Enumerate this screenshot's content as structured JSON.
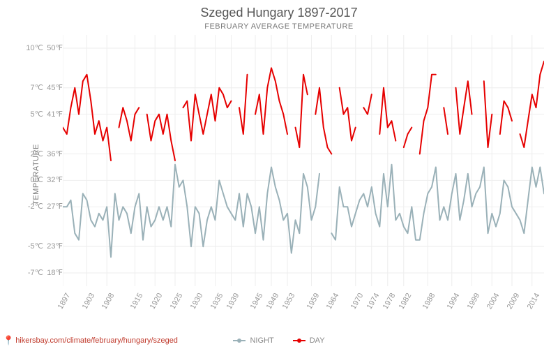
{
  "title": "Szeged Hungary 1897-2017",
  "subtitle": "FEBRUARY AVERAGE TEMPERATURE",
  "yaxis_label": "TEMPERATURE",
  "attribution": "hikersbay.com/climate/february/hungary/szeged",
  "chart": {
    "type": "line",
    "background_color": "#ffffff",
    "grid_color": "#eeeeee",
    "axis_text_color": "#999999",
    "title_color": "#555555",
    "title_fontsize": 18,
    "subtitle_fontsize": 11,
    "tick_fontsize": 11,
    "xlim": [
      1897,
      2017
    ],
    "ylim": [
      -8,
      11
    ],
    "yticks_c": [
      -7,
      -5,
      -2,
      0,
      2,
      5,
      7,
      10
    ],
    "yticks_f": [
      18,
      23,
      27,
      32,
      36,
      41,
      45,
      50
    ],
    "xticks": [
      1897,
      1903,
      1908,
      1915,
      1920,
      1925,
      1930,
      1935,
      1939,
      1945,
      1949,
      1953,
      1959,
      1964,
      1970,
      1974,
      1978,
      1982,
      1988,
      1994,
      1999,
      2004,
      2009,
      2014
    ],
    "series": [
      {
        "name": "NIGHT",
        "color": "#9ab1b8",
        "line_width": 2,
        "marker": "circle",
        "segments": [
          {
            "x": [
              1897,
              1898,
              1899,
              1900,
              1901,
              1902,
              1903,
              1904,
              1905,
              1906,
              1907,
              1908,
              1909,
              1910,
              1911,
              1912,
              1913,
              1914,
              1915,
              1916,
              1917,
              1918,
              1919,
              1920,
              1921,
              1922,
              1923,
              1924,
              1925,
              1926,
              1927,
              1928,
              1929,
              1930,
              1931,
              1932,
              1933,
              1934,
              1935,
              1936,
              1937,
              1938,
              1939,
              1940,
              1941,
              1942,
              1943,
              1944,
              1945,
              1946,
              1947,
              1948,
              1949,
              1950,
              1951,
              1952,
              1953,
              1954,
              1955,
              1956,
              1957,
              1958,
              1959,
              1960,
              1961
            ],
            "y": [
              -2.0,
              -2.0,
              -1.5,
              -4.0,
              -4.5,
              -1.0,
              -1.5,
              -3.0,
              -3.5,
              -2.5,
              -3.0,
              -2.0,
              -5.8,
              -1.0,
              -3.0,
              -2.0,
              -2.5,
              -4.0,
              -2.0,
              -1.0,
              -4.5,
              -2.0,
              -3.5,
              -3.0,
              -2.0,
              -3.0,
              -2.0,
              -3.5,
              1.2,
              -0.5,
              0.0,
              -2.0,
              -5.0,
              -2.0,
              -2.5,
              -5.0,
              -3.0,
              -2.0,
              -3.0,
              0.0,
              -1.0,
              -2.0,
              -2.5,
              -3.0,
              -1.0,
              -3.5,
              -1.0,
              -2.0,
              -4.0,
              -2.0,
              -4.5,
              -1.0,
              1.0,
              -0.5,
              -1.5,
              -3.0,
              -2.5,
              -5.5,
              -3.0,
              -4.0,
              0.5,
              -0.5,
              -3.0,
              -2.0,
              0.5
            ]
          },
          {
            "x": [
              1964,
              1965,
              1966,
              1967,
              1968,
              1969,
              1970,
              1971,
              1972,
              1973,
              1974,
              1975,
              1976,
              1977,
              1978,
              1979,
              1980,
              1981,
              1982,
              1983,
              1984,
              1985,
              1986,
              1987,
              1988,
              1989,
              1990,
              1991,
              1992,
              1993,
              1994,
              1995,
              1996,
              1997,
              1998,
              1999,
              2000,
              2001,
              2002,
              2003,
              2004,
              2005,
              2006,
              2007,
              2008,
              2009,
              2010,
              2011,
              2012,
              2013,
              2014,
              2015,
              2016,
              2017
            ],
            "y": [
              -4.0,
              -4.5,
              -0.5,
              -2.0,
              -2.0,
              -3.5,
              -2.5,
              -1.5,
              -1.0,
              -2.0,
              -0.5,
              -2.5,
              -3.5,
              0.5,
              -2.0,
              1.2,
              -3.0,
              -2.5,
              -3.5,
              -4.0,
              -2.0,
              -4.5,
              -4.5,
              -2.5,
              -1.0,
              -0.5,
              1.0,
              -3.0,
              -2.0,
              -3.0,
              -1.0,
              0.5,
              -3.0,
              -1.5,
              0.5,
              -2.0,
              -1.0,
              -0.5,
              1.0,
              -4.0,
              -2.5,
              -3.5,
              -2.5,
              0.0,
              -0.5,
              -2.0,
              -2.5,
              -3.0,
              -4.0,
              -1.5,
              1.0,
              -0.5,
              1.0,
              -1.0
            ]
          }
        ]
      },
      {
        "name": "DAY",
        "color": "#e60000",
        "line_width": 2,
        "marker": "circle",
        "segments": [
          {
            "x": [
              1897,
              1898,
              1899,
              1900,
              1901,
              1902,
              1903,
              1904,
              1905,
              1906,
              1907,
              1908,
              1909
            ],
            "y": [
              4.0,
              3.5,
              5.5,
              7.0,
              5.0,
              7.5,
              8.0,
              6.0,
              3.5,
              4.5,
              3.0,
              4.0,
              1.5
            ]
          },
          {
            "x": [
              1911,
              1912,
              1913,
              1914,
              1915,
              1916
            ],
            "y": [
              4.0,
              5.5,
              4.5,
              3.0,
              5.0,
              5.5
            ]
          },
          {
            "x": [
              1918,
              1919,
              1920,
              1921,
              1922,
              1923,
              1924,
              1925
            ],
            "y": [
              5.0,
              3.0,
              4.5,
              5.0,
              3.5,
              5.0,
              3.0,
              1.5
            ]
          },
          {
            "x": [
              1927,
              1928,
              1929,
              1930,
              1931,
              1932,
              1933,
              1934,
              1935,
              1936,
              1937,
              1938,
              1939
            ],
            "y": [
              5.5,
              6.0,
              3.0,
              6.5,
              5.0,
              3.5,
              5.0,
              6.5,
              4.5,
              7.0,
              6.5,
              5.5,
              6.0
            ]
          },
          {
            "x": [
              1941,
              1942,
              1943
            ],
            "y": [
              5.5,
              3.5,
              8.0
            ]
          },
          {
            "x": [
              1945,
              1946,
              1947,
              1948,
              1949,
              1950,
              1951,
              1952,
              1953
            ],
            "y": [
              5.0,
              6.5,
              3.5,
              7.0,
              8.5,
              7.5,
              6.0,
              5.0,
              3.5
            ]
          },
          {
            "x": [
              1955,
              1956,
              1957,
              1958
            ],
            "y": [
              4.0,
              2.5,
              8.0,
              6.5
            ]
          },
          {
            "x": [
              1960,
              1961,
              1962,
              1963,
              1964
            ],
            "y": [
              5.0,
              7.0,
              4.0,
              2.5,
              2.0
            ]
          },
          {
            "x": [
              1966,
              1967,
              1968,
              1969,
              1970
            ],
            "y": [
              7.0,
              5.0,
              5.5,
              3.0,
              4.0
            ]
          },
          {
            "x": [
              1972,
              1973,
              1974
            ],
            "y": [
              5.5,
              5.0,
              6.5
            ]
          },
          {
            "x": [
              1976,
              1977,
              1978,
              1979,
              1980
            ],
            "y": [
              3.5,
              7.0,
              4.0,
              4.5,
              3.0
            ]
          },
          {
            "x": [
              1982,
              1983,
              1984
            ],
            "y": [
              2.5,
              3.5,
              4.0
            ]
          },
          {
            "x": [
              1986,
              1987,
              1988,
              1989,
              1990
            ],
            "y": [
              2.0,
              4.5,
              5.5,
              8.0,
              8.0
            ]
          },
          {
            "x": [
              1992,
              1993
            ],
            "y": [
              5.5,
              3.5
            ]
          },
          {
            "x": [
              1995,
              1996,
              1997,
              1998,
              1999
            ],
            "y": [
              7.0,
              3.5,
              5.5,
              7.5,
              5.0
            ]
          },
          {
            "x": [
              2002,
              2003,
              2004
            ],
            "y": [
              7.5,
              2.5,
              5.0
            ]
          },
          {
            "x": [
              2006,
              2007,
              2008,
              2009
            ],
            "y": [
              3.5,
              6.0,
              5.5,
              4.5
            ]
          },
          {
            "x": [
              2011,
              2012,
              2013,
              2014,
              2015,
              2016,
              2017
            ],
            "y": [
              3.5,
              2.5,
              4.5,
              6.5,
              5.5,
              8.0,
              9.0
            ]
          }
        ]
      }
    ]
  },
  "legend": {
    "night": "NIGHT",
    "day": "DAY"
  }
}
